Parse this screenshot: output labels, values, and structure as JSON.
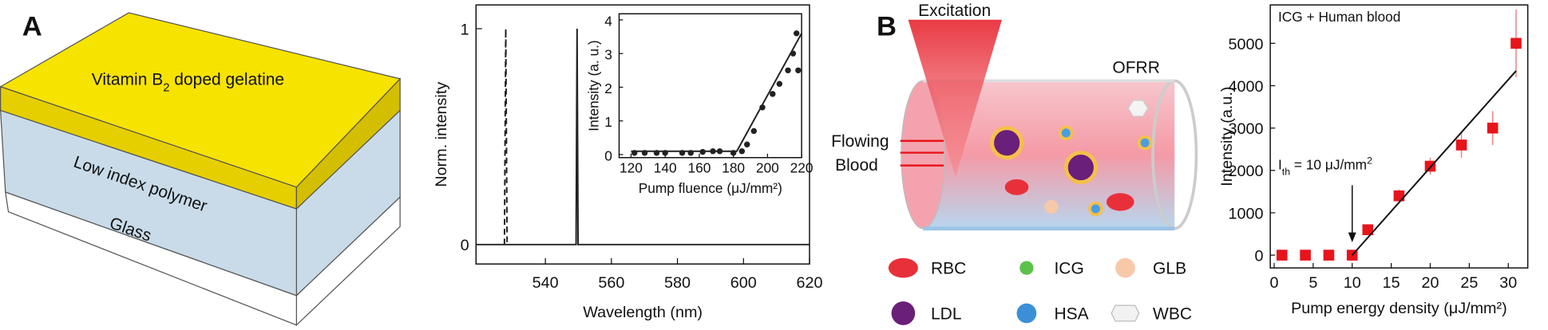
{
  "panel_a": {
    "label": "A",
    "layers": {
      "top": {
        "text": "Vitamin B",
        "sub": "2",
        "rest": " doped gelatine"
      },
      "middle": "Low index polymer",
      "bottom": "Glass"
    }
  },
  "panel_b": {
    "label": "B",
    "excitation": "Excitation",
    "resonator": "OFRR",
    "flow": [
      "Flowing",
      "Blood"
    ],
    "legend": [
      "RBC",
      "ICG",
      "GLB",
      "LDL",
      "HSA",
      "WBC"
    ]
  },
  "chart_data": [
    {
      "type": "line",
      "xlabel": "Wavelength (nm)",
      "ylabel": "Norm. intensity",
      "xlim": [
        519,
        620
      ],
      "xticks": [
        540,
        560,
        580,
        600,
        620
      ],
      "ylim": [
        -0.09,
        1.11
      ],
      "yticks": [
        0,
        1
      ],
      "series": [
        {
          "color": "#222222",
          "dash": true,
          "x": [
            527.6,
            528,
            528.4
          ],
          "values": [
            0,
            1,
            0
          ]
        },
        {
          "color": "#222222",
          "dash": false,
          "x": [
            519,
            549.3,
            549.6,
            549.9,
            620
          ],
          "values": [
            0,
            0,
            1,
            0,
            0
          ]
        }
      ]
    },
    {
      "type": "scatter",
      "xlabel": "Pump fluence (μJ/mm²)",
      "ylabel": "Intensity (a. u.)",
      "xlim": [
        113,
        220
      ],
      "xticks": [
        120,
        140,
        160,
        180,
        200,
        220
      ],
      "ylim": [
        -0.09,
        4.18
      ],
      "yticks": [
        0,
        1,
        2,
        3,
        4
      ],
      "series": [
        {
          "color": "#222222",
          "x": [
            122,
            128,
            135,
            140,
            150,
            155,
            162,
            168,
            172,
            180,
            185,
            188,
            192,
            197,
            203,
            207,
            212,
            215,
            217,
            218
          ],
          "values": [
            0.05,
            0.05,
            0.05,
            0.05,
            0.05,
            0.05,
            0.08,
            0.1,
            0.1,
            0.05,
            0.1,
            0.3,
            0.7,
            1.4,
            1.8,
            2.1,
            2.5,
            3.0,
            3.6,
            2.5
          ]
        },
        {
          "type": "line",
          "color": "#222222",
          "x": [
            120,
            182,
            220
          ],
          "values": [
            0.1,
            0.1,
            3.6
          ]
        }
      ]
    },
    {
      "type": "scatter",
      "xlabel": "Pump energy density (μJ/mm²)",
      "ylabel": "Intensity (a.u.)",
      "xlim": [
        -0.5,
        32.5
      ],
      "xticks": [
        0,
        5,
        10,
        15,
        20,
        25,
        30
      ],
      "ylim": [
        -302,
        5907
      ],
      "yticks": [
        0,
        1000,
        2000,
        3000,
        4000,
        5000
      ],
      "annotations": [
        "ICG + Human blood"
      ],
      "threshold_label": {
        "main": "I",
        "sub": "th",
        "rest": " = 10 μJ/mm",
        "sup": "2"
      },
      "series": [
        {
          "color": "#e8141b",
          "marker": "square",
          "x": [
            1,
            4,
            7,
            10,
            12,
            16,
            20,
            24,
            28,
            31
          ],
          "values": [
            0,
            0,
            0,
            0,
            600,
            1400,
            2100,
            2600,
            3000,
            5000
          ],
          "errors": [
            0,
            0,
            0,
            0,
            100,
            150,
            200,
            300,
            400,
            800
          ]
        },
        {
          "type": "line",
          "color": "#111111",
          "x": [
            10,
            31
          ],
          "values": [
            0,
            4350
          ]
        }
      ]
    }
  ]
}
